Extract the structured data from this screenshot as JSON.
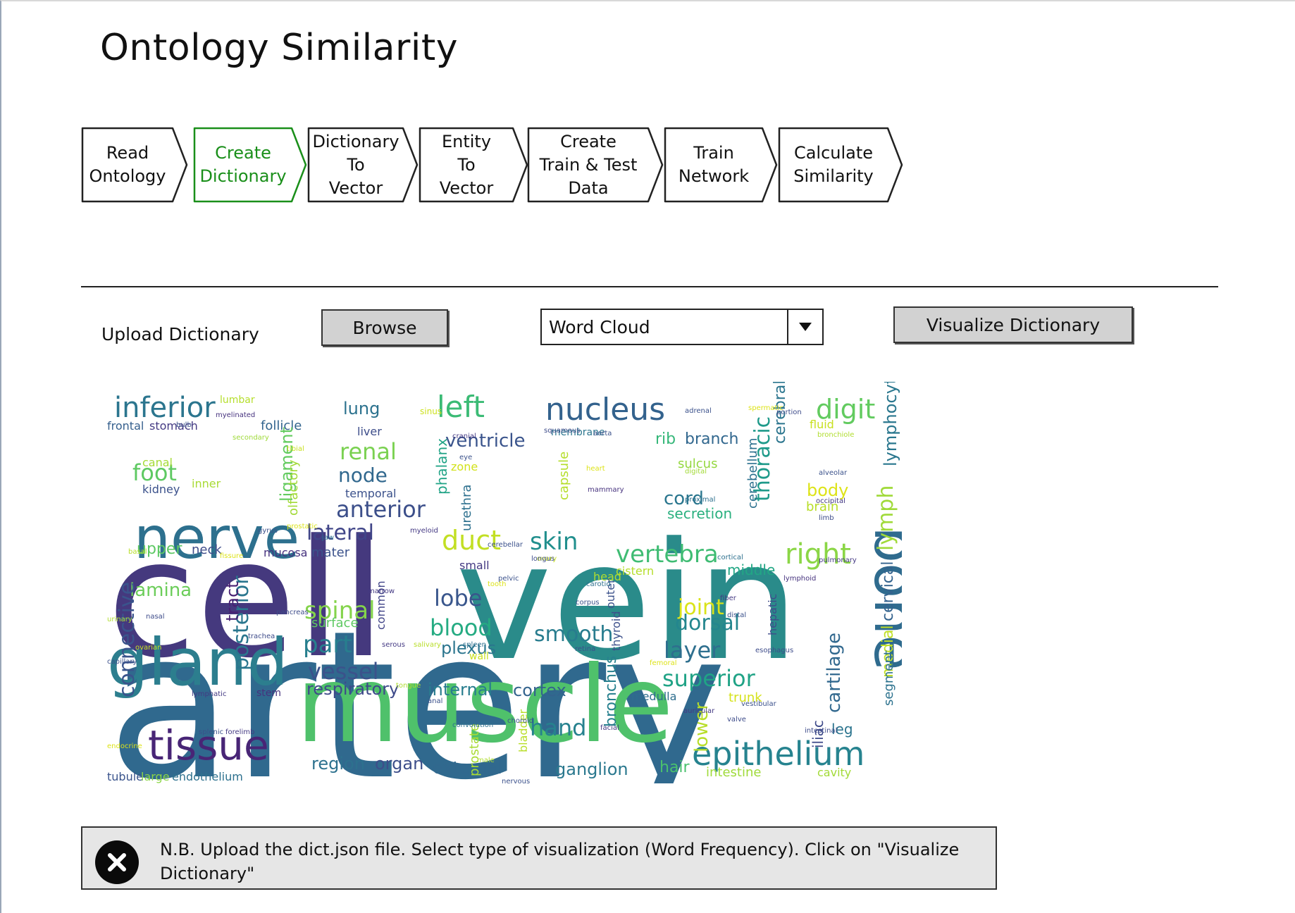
{
  "app": {
    "title": "Ontology Similarity"
  },
  "steps": [
    {
      "label": "Read\nOntology",
      "active": false
    },
    {
      "label": "Create\nDictionary",
      "active": true
    },
    {
      "label": "Dictionary\nTo\nVector",
      "active": false
    },
    {
      "label": "Entity\nTo\nVector",
      "active": false
    },
    {
      "label": "Create\nTrain & Test\nData",
      "active": false
    },
    {
      "label": "Train\nNetwork",
      "active": false
    },
    {
      "label": "Calculate\nSimilarity",
      "active": false
    }
  ],
  "controls": {
    "upload_label": "Upload Dictionary",
    "browse_label": "Browse",
    "visualization_type": "Word Cloud",
    "visualize_label": "Visualize Dictionary"
  },
  "colors": {
    "active_step": "#1a8f1a",
    "button_bg": "#d2d2d2",
    "notice_bg": "#e6e6e6"
  },
  "wordcloud": {
    "words": [
      {
        "t": "cell",
        "c": "#45397e",
        "size": 230,
        "rot": 0
      },
      {
        "t": "vein",
        "c": "#2a8b8a",
        "size": 230,
        "rot": 0
      },
      {
        "t": "artery",
        "c": "#30698e",
        "size": 290,
        "rot": 0
      },
      {
        "t": "muscle",
        "c": "#4fc16b",
        "size": 150,
        "rot": 0
      },
      {
        "t": "gland",
        "c": "#2c7e8e",
        "size": 92,
        "rot": 0
      },
      {
        "t": "nerve",
        "c": "#2d708e",
        "size": 82,
        "rot": 0
      },
      {
        "t": "tissue",
        "c": "#482576",
        "size": 58,
        "rot": 0
      },
      {
        "t": "bone",
        "c": "#2f6b8e",
        "size": 82,
        "rot": 90
      },
      {
        "t": "epithelium",
        "c": "#26838f",
        "size": 46,
        "rot": 0
      },
      {
        "t": "inferior",
        "c": "#2b758e",
        "size": 40,
        "rot": 0
      },
      {
        "t": "nucleus",
        "c": "#33628d",
        "size": 44,
        "rot": 0
      },
      {
        "t": "left",
        "c": "#3bbb75",
        "size": 42,
        "rot": 0
      },
      {
        "t": "digit",
        "c": "#62cb5f",
        "size": 38,
        "rot": 0
      },
      {
        "t": "right",
        "c": "#8bd646",
        "size": 40,
        "rot": 0
      },
      {
        "t": "vertebra",
        "c": "#3fbc73",
        "size": 34,
        "rot": 0
      },
      {
        "t": "anterior",
        "c": "#3c4f8a",
        "size": 32,
        "rot": 0
      },
      {
        "t": "lateral",
        "c": "#404588",
        "size": 30,
        "rot": 0
      },
      {
        "t": "duct",
        "c": "#c2df23",
        "size": 38,
        "rot": 0
      },
      {
        "t": "skin",
        "c": "#218f8d",
        "size": 34,
        "rot": 0
      },
      {
        "t": "renal",
        "c": "#7ad151",
        "size": 32,
        "rot": 0
      },
      {
        "t": "foot",
        "c": "#5ec962",
        "size": 32,
        "rot": 0
      },
      {
        "t": "node",
        "c": "#31688e",
        "size": 28,
        "rot": 0
      },
      {
        "t": "lung",
        "c": "#2c728e",
        "size": 24,
        "rot": 0
      },
      {
        "t": "ventricle",
        "c": "#3a548c",
        "size": 26,
        "rot": 0
      },
      {
        "t": "branch",
        "c": "#31678e",
        "size": 22,
        "rot": 0
      },
      {
        "t": "rib",
        "c": "#35b779",
        "size": 22,
        "rot": 0
      },
      {
        "t": "cord",
        "c": "#2a768e",
        "size": 26,
        "rot": 0
      },
      {
        "t": "body",
        "c": "#dde318",
        "size": 24,
        "rot": 0
      },
      {
        "t": "spinal",
        "c": "#84d44b",
        "size": 34,
        "rot": 0
      },
      {
        "t": "part",
        "c": "#277f8e",
        "size": 34,
        "rot": 0
      },
      {
        "t": "vessel",
        "c": "#3b528b",
        "size": 32,
        "rot": 0
      },
      {
        "t": "lobe",
        "c": "#39568c",
        "size": 32,
        "rot": 0
      },
      {
        "t": "blood",
        "c": "#25ab82",
        "size": 32,
        "rot": 0
      },
      {
        "t": "plexus",
        "c": "#2b758e",
        "size": 24,
        "rot": 0
      },
      {
        "t": "smooth",
        "c": "#287c8e",
        "size": 30,
        "rot": 0
      },
      {
        "t": "dorsal",
        "c": "#24868e",
        "size": 30,
        "rot": 0
      },
      {
        "t": "layer",
        "c": "#2e6f8e",
        "size": 32,
        "rot": 0
      },
      {
        "t": "superior",
        "c": "#20a386",
        "size": 32,
        "rot": 0
      },
      {
        "t": "joint",
        "c": "#dae319",
        "size": 30,
        "rot": 0
      },
      {
        "t": "respiratory",
        "c": "#3e4a89",
        "size": 24,
        "rot": 0
      },
      {
        "t": "internal",
        "c": "#287d8e",
        "size": 24,
        "rot": 0
      },
      {
        "t": "cortex",
        "c": "#33638d",
        "size": 24,
        "rot": 0
      },
      {
        "t": "hand",
        "c": "#26818e",
        "size": 32,
        "rot": 0
      },
      {
        "t": "ganglion",
        "c": "#2a788e",
        "size": 24,
        "rot": 0
      },
      {
        "t": "hair",
        "c": "#4ac16d",
        "size": 22,
        "rot": 0
      },
      {
        "t": "region",
        "c": "#2d718e",
        "size": 24,
        "rot": 0
      },
      {
        "t": "organ",
        "c": "#3d4e8a",
        "size": 24,
        "rot": 0
      },
      {
        "t": "external",
        "c": "#31688e",
        "size": 24,
        "rot": 0
      },
      {
        "t": "lamina",
        "c": "#6ccd5a",
        "size": 26,
        "rot": 0
      },
      {
        "t": "upper",
        "c": "#5cc863",
        "size": 22,
        "rot": 0
      },
      {
        "t": "neck",
        "c": "#3e4c8a",
        "size": 18,
        "rot": 0
      },
      {
        "t": "kidney",
        "c": "#3b518b",
        "size": 16,
        "rot": 0
      },
      {
        "t": "canal",
        "c": "#a5db36",
        "size": 16,
        "rot": 0
      },
      {
        "t": "frontal",
        "c": "#355f8d",
        "size": 16,
        "rot": 0
      },
      {
        "t": "stomach",
        "c": "#443a83",
        "size": 16,
        "rot": 0
      },
      {
        "t": "lumbar",
        "c": "#b5de2b",
        "size": 14,
        "rot": 0
      },
      {
        "t": "follicle",
        "c": "#32648e",
        "size": 18,
        "rot": 0
      },
      {
        "t": "temporal",
        "c": "#3b518b",
        "size": 16,
        "rot": 0
      },
      {
        "t": "inner",
        "c": "#a8db34",
        "size": 16,
        "rot": 0
      },
      {
        "t": "mater",
        "c": "#3b528b",
        "size": 18,
        "rot": 0
      },
      {
        "t": "mucosa",
        "c": "#46327e",
        "size": 16,
        "rot": 0
      },
      {
        "t": "liver",
        "c": "#3d4d8a",
        "size": 16,
        "rot": 0
      },
      {
        "t": "membrane",
        "c": "#2b758e",
        "size": 14,
        "rot": 0
      },
      {
        "t": "zone",
        "c": "#d2e21b",
        "size": 16,
        "rot": 0
      },
      {
        "t": "sulcus",
        "c": "#95d840",
        "size": 18,
        "rot": 0
      },
      {
        "t": "secretion",
        "c": "#2ab07f",
        "size": 20,
        "rot": 0
      },
      {
        "t": "brain",
        "c": "#b8de29",
        "size": 18,
        "rot": 0
      },
      {
        "t": "fluid",
        "c": "#c8e020",
        "size": 16,
        "rot": 0
      },
      {
        "t": "small",
        "c": "#443983",
        "size": 16,
        "rot": 0
      },
      {
        "t": "head",
        "c": "#b0dd2f",
        "size": 16,
        "rot": 0
      },
      {
        "t": "cistern",
        "c": "#b5de2b",
        "size": 16,
        "rot": 0
      },
      {
        "t": "middle",
        "c": "#22a785",
        "size": 20,
        "rot": 0
      },
      {
        "t": "surface",
        "c": "#5ec962",
        "size": 18,
        "rot": 0
      },
      {
        "t": "wall",
        "c": "#cae11f",
        "size": 14,
        "rot": 0
      },
      {
        "t": "stem",
        "c": "#46327e",
        "size": 14,
        "rot": 0
      },
      {
        "t": "trunk",
        "c": "#d5e21a",
        "size": 18,
        "rot": 0
      },
      {
        "t": "medulla",
        "c": "#2e6e8e",
        "size": 16,
        "rot": 0
      },
      {
        "t": "leg",
        "c": "#2b748e",
        "size": 20,
        "rot": 0
      },
      {
        "t": "tubule",
        "c": "#3a548c",
        "size": 16,
        "rot": 0
      },
      {
        "t": "large",
        "c": "#8bd646",
        "size": 16,
        "rot": 0
      },
      {
        "t": "endothelium",
        "c": "#2d718e",
        "size": 16,
        "rot": 0
      },
      {
        "t": "intestine",
        "c": "#9fda3a",
        "size": 18,
        "rot": 0
      },
      {
        "t": "cavity",
        "c": "#a2da37",
        "size": 16,
        "rot": 0
      },
      {
        "t": "ligament",
        "c": "#63cb5f",
        "size": 24,
        "rot": -90
      },
      {
        "t": "olfactory",
        "c": "#a2da37",
        "size": 18,
        "rot": -90
      },
      {
        "t": "phalanx",
        "c": "#20a386",
        "size": 20,
        "rot": -90
      },
      {
        "t": "thoracic",
        "c": "#1f9a8a",
        "size": 30,
        "rot": -90
      },
      {
        "t": "cerebral",
        "c": "#2b758e",
        "size": 22,
        "rot": -90
      },
      {
        "t": "cerebellum",
        "c": "#2c718e",
        "size": 18,
        "rot": -90
      },
      {
        "t": "lymphocyte",
        "c": "#2a778e",
        "size": 24,
        "rot": -90
      },
      {
        "t": "lymph",
        "c": "#a0da39",
        "size": 30,
        "rot": -90
      },
      {
        "t": "cervical",
        "c": "#33628d",
        "size": 22,
        "rot": -90
      },
      {
        "t": "medial",
        "c": "#c0df25",
        "size": 22,
        "rot": -90
      },
      {
        "t": "segment",
        "c": "#2c728e",
        "size": 18,
        "rot": -90
      },
      {
        "t": "cartilage",
        "c": "#31688e",
        "size": 26,
        "rot": -90
      },
      {
        "t": "iliac",
        "c": "#3e4a89",
        "size": 20,
        "rot": -90
      },
      {
        "t": "lower",
        "c": "#b8de29",
        "size": 26,
        "rot": -90
      },
      {
        "t": "connective",
        "c": "#3a548c",
        "size": 30,
        "rot": -90
      },
      {
        "t": "posterior",
        "c": "#2a768e",
        "size": 30,
        "rot": -90
      },
      {
        "t": "tract",
        "c": "#482173",
        "size": 24,
        "rot": -90
      },
      {
        "t": "capsule",
        "c": "#b5de2b",
        "size": 18,
        "rot": -90
      },
      {
        "t": "urethra",
        "c": "#2d708e",
        "size": 18,
        "rot": -90
      },
      {
        "t": "common",
        "c": "#404387",
        "size": 16,
        "rot": -90
      },
      {
        "t": "prostate",
        "c": "#a8db34",
        "size": 18,
        "rot": -90
      },
      {
        "t": "bladder",
        "c": "#b8de29",
        "size": 16,
        "rot": -90
      },
      {
        "t": "bronchus",
        "c": "#27808e",
        "size": 22,
        "rot": -90
      },
      {
        "t": "thyroid",
        "c": "#3c4f8a",
        "size": 16,
        "rot": -90
      },
      {
        "t": "outer",
        "c": "#3b518b",
        "size": 16,
        "rot": -90
      },
      {
        "t": "hepatic",
        "c": "#3e4c8a",
        "size": 16,
        "rot": -90
      },
      {
        "t": "sinus",
        "c": "#cde11d",
        "size": 12,
        "rot": 0
      },
      {
        "t": "adrenal",
        "c": "#3b518b",
        "size": 10,
        "rot": 0
      },
      {
        "t": "spermatic",
        "c": "#dde318",
        "size": 10,
        "rot": 0
      },
      {
        "t": "portion",
        "c": "#3e4c8a",
        "size": 10,
        "rot": 0
      },
      {
        "t": "myelinated",
        "c": "#46327e",
        "size": 10,
        "rot": 0
      },
      {
        "t": "bulb",
        "c": "#3b518b",
        "size": 10,
        "rot": 0
      },
      {
        "t": "secondary",
        "c": "#9fda3a",
        "size": 10,
        "rot": 0
      },
      {
        "t": "cranial",
        "c": "#443983",
        "size": 10,
        "rot": 0
      },
      {
        "t": "eye",
        "c": "#3b528b",
        "size": 10,
        "rot": 0
      },
      {
        "t": "squamous",
        "c": "#3e4c8a",
        "size": 10,
        "rot": 0
      },
      {
        "t": "aorta",
        "c": "#3b518b",
        "size": 10,
        "rot": 0
      },
      {
        "t": "bronchiole",
        "c": "#b0dd2f",
        "size": 10,
        "rot": 0
      },
      {
        "t": "tibial",
        "c": "#c8e020",
        "size": 10,
        "rot": 0
      },
      {
        "t": "heart",
        "c": "#dde318",
        "size": 10,
        "rot": 0
      },
      {
        "t": "digital",
        "c": "#a2da37",
        "size": 10,
        "rot": 0
      },
      {
        "t": "alveolar",
        "c": "#3b518b",
        "size": 10,
        "rot": 0
      },
      {
        "t": "mammary",
        "c": "#46327e",
        "size": 10,
        "rot": 0
      },
      {
        "t": "proximal",
        "c": "#2d708e",
        "size": 10,
        "rot": 0
      },
      {
        "t": "occipital",
        "c": "#443983",
        "size": 10,
        "rot": 0
      },
      {
        "t": "limb",
        "c": "#3e4c8a",
        "size": 10,
        "rot": 0
      },
      {
        "t": "prostatic",
        "c": "#dae319",
        "size": 10,
        "rot": 0
      },
      {
        "t": "gyrus",
        "c": "#3b518b",
        "size": 10,
        "rot": 0
      },
      {
        "t": "myeloid",
        "c": "#443983",
        "size": 10,
        "rot": 0
      },
      {
        "t": "jaw",
        "c": "#2d708e",
        "size": 10,
        "rot": 0
      },
      {
        "t": "basal",
        "c": "#b8de29",
        "size": 10,
        "rot": 0
      },
      {
        "t": "fissure",
        "c": "#dde318",
        "size": 10,
        "rot": 0
      },
      {
        "t": "cerebellar",
        "c": "#3b518b",
        "size": 10,
        "rot": 0
      },
      {
        "t": "ovary",
        "c": "#c8e020",
        "size": 10,
        "rot": 0
      },
      {
        "t": "longus",
        "c": "#3e4c8a",
        "size": 10,
        "rot": 0
      },
      {
        "t": "cortical",
        "c": "#2d708e",
        "size": 10,
        "rot": 0
      },
      {
        "t": "pulmonary",
        "c": "#443983",
        "size": 10,
        "rot": 0
      },
      {
        "t": "lymphoid",
        "c": "#46327e",
        "size": 10,
        "rot": 0
      },
      {
        "t": "pelvic",
        "c": "#3b518b",
        "size": 10,
        "rot": 0
      },
      {
        "t": "tooth",
        "c": "#dde318",
        "size": 10,
        "rot": 0
      },
      {
        "t": "marrow",
        "c": "#443983",
        "size": 10,
        "rot": 0
      },
      {
        "t": "pancreas",
        "c": "#3e4c8a",
        "size": 10,
        "rot": 0
      },
      {
        "t": "urinary",
        "c": "#b0dd2f",
        "size": 10,
        "rot": 0
      },
      {
        "t": "corpus",
        "c": "#3b518b",
        "size": 10,
        "rot": 0
      },
      {
        "t": "carotid",
        "c": "#2d708e",
        "size": 10,
        "rot": 0
      },
      {
        "t": "fiber",
        "c": "#443983",
        "size": 10,
        "rot": 0
      },
      {
        "t": "distal",
        "c": "#3b518b",
        "size": 10,
        "rot": 0
      },
      {
        "t": "nasal",
        "c": "#3e4c8a",
        "size": 10,
        "rot": 0
      },
      {
        "t": "ovarian",
        "c": "#c8e020",
        "size": 10,
        "rot": 0
      },
      {
        "t": "capillary",
        "c": "#3b518b",
        "size": 10,
        "rot": 0
      },
      {
        "t": "trachea",
        "c": "#3e4c8a",
        "size": 10,
        "rot": 0
      },
      {
        "t": "serous",
        "c": "#443983",
        "size": 10,
        "rot": 0
      },
      {
        "t": "salivary",
        "c": "#b8de29",
        "size": 10,
        "rot": 0
      },
      {
        "t": "spleen",
        "c": "#2d708e",
        "size": 10,
        "rot": 0
      },
      {
        "t": "retina",
        "c": "#3b518b",
        "size": 10,
        "rot": 0
      },
      {
        "t": "esophagus",
        "c": "#3e4c8a",
        "size": 10,
        "rot": 0
      },
      {
        "t": "tongue",
        "c": "#b0dd2f",
        "size": 10,
        "rot": 0
      },
      {
        "t": "femoral",
        "c": "#dde318",
        "size": 10,
        "rot": 0
      },
      {
        "t": "lymphatic",
        "c": "#443983",
        "size": 10,
        "rot": 0
      },
      {
        "t": "vestibular",
        "c": "#3b518b",
        "size": 10,
        "rot": 0
      },
      {
        "t": "valve",
        "c": "#3e4c8a",
        "size": 10,
        "rot": 0
      },
      {
        "t": "auricular",
        "c": "#443983",
        "size": 10,
        "rot": 0
      },
      {
        "t": "anal",
        "c": "#3b518b",
        "size": 10,
        "rot": 0
      },
      {
        "t": "convolution",
        "c": "#2d708e",
        "size": 10,
        "rot": 0
      },
      {
        "t": "choroid",
        "c": "#3b518b",
        "size": 10,
        "rot": 0
      },
      {
        "t": "facial",
        "c": "#443983",
        "size": 10,
        "rot": 0
      },
      {
        "t": "intestinal",
        "c": "#3e4c8a",
        "size": 10,
        "rot": 0
      },
      {
        "t": "splenic",
        "c": "#3b518b",
        "size": 10,
        "rot": 0
      },
      {
        "t": "forelimb",
        "c": "#443983",
        "size": 10,
        "rot": 0
      },
      {
        "t": "endocrine",
        "c": "#dde318",
        "size": 10,
        "rot": 0
      },
      {
        "t": "male",
        "c": "#b0dd2f",
        "size": 10,
        "rot": 0
      },
      {
        "t": "nervous",
        "c": "#3b518b",
        "size": 10,
        "rot": 0
      }
    ]
  },
  "notice": {
    "text": "N.B. Upload the dict.json file. Select type of visualization (Word Frequency). Click on \"Visualize Dictionary\""
  }
}
